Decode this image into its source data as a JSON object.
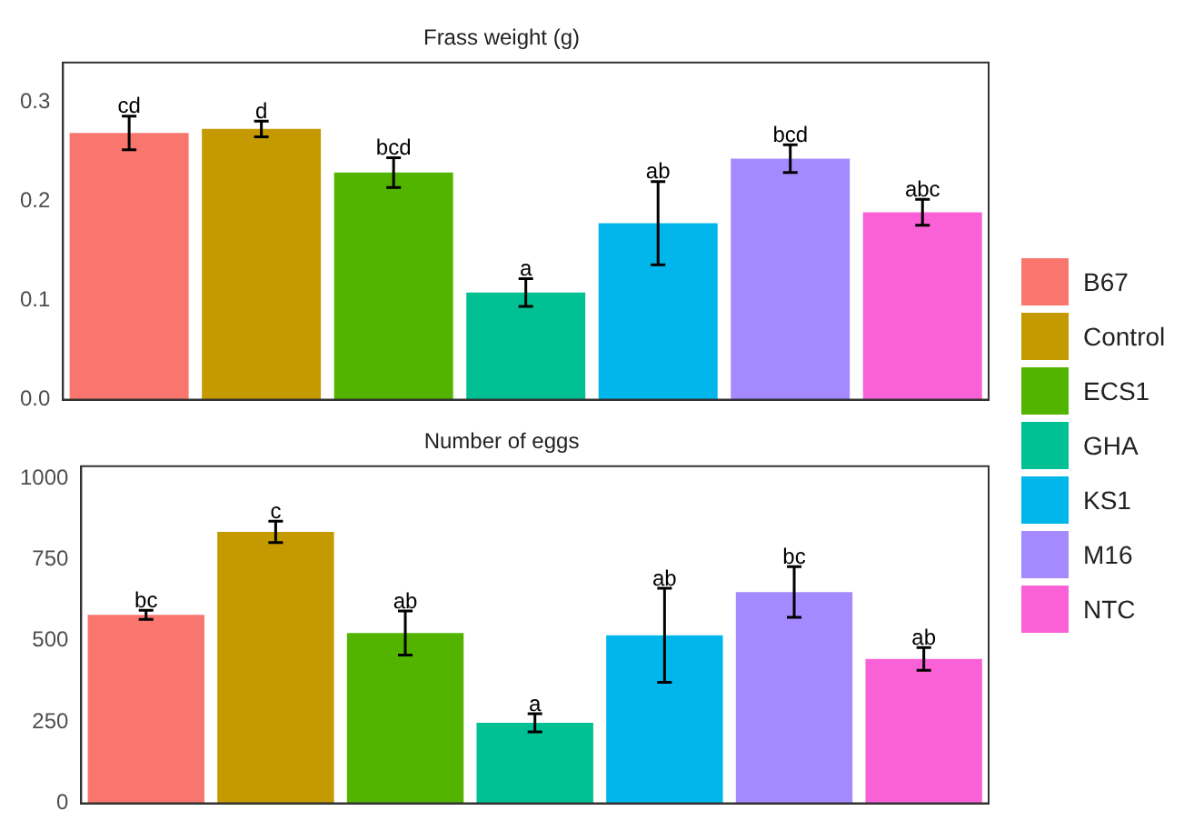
{
  "chart_data": [
    {
      "type": "bar",
      "title": "Frass weight (g)",
      "categories": [
        null,
        null,
        null,
        null,
        null,
        null,
        null
      ],
      "stacked": true,
      "series": [
        {
          "name": "B67",
          "color": "#f8766d",
          "values": [
            0.269,
            null,
            null,
            null,
            null,
            null,
            null
          ],
          "errors": [
            0.017,
            null,
            null,
            null,
            null,
            null,
            null
          ]
        },
        {
          "name": "Control",
          "color": "#c49a00",
          "values": [
            null,
            0.273,
            null,
            null,
            null,
            null,
            null
          ],
          "errors": [
            null,
            0.008,
            null,
            null,
            null,
            null,
            null
          ]
        },
        {
          "name": "ECS1",
          "color": "#53b400",
          "values": [
            null,
            null,
            0.229,
            null,
            null,
            null,
            null
          ],
          "errors": [
            null,
            null,
            0.015,
            null,
            null,
            null,
            null
          ]
        },
        {
          "name": "GHA",
          "color": "#00c094",
          "values": [
            null,
            null,
            null,
            0.108,
            null,
            null,
            null
          ],
          "errors": [
            null,
            null,
            null,
            0.014,
            null,
            null,
            null
          ]
        },
        {
          "name": "KS1",
          "color": "#00b6eb",
          "values": [
            null,
            null,
            null,
            null,
            0.178,
            null,
            null
          ],
          "errors": [
            null,
            null,
            null,
            null,
            0.042,
            null,
            null
          ]
        },
        {
          "name": "M16",
          "color": "#a58aff",
          "values": [
            null,
            null,
            null,
            null,
            null,
            0.243,
            null
          ],
          "errors": [
            null,
            null,
            null,
            null,
            null,
            0.014,
            null
          ]
        },
        {
          "name": "NTC",
          "color": "#fb61d7",
          "values": [
            null,
            null,
            null,
            null,
            null,
            null,
            0.189
          ],
          "errors": [
            null,
            null,
            null,
            null,
            null,
            null,
            0.013
          ]
        }
      ],
      "ylim": [
        0,
        0.34
      ],
      "yticks": [
        {
          "value": 0,
          "label": "0.0"
        },
        0.1,
        0.2,
        0.3
      ],
      "grid": false,
      "legend": "right",
      "tick_labels": "y",
      "annotations": [
        {
          "text": "cd",
          "y": 0.286
        },
        {
          "text": "d",
          "y": 0.281
        },
        {
          "text": "bcd",
          "y": 0.244
        },
        {
          "text": "a",
          "y": 0.122
        },
        {
          "text": "ab",
          "y": 0.22
        },
        {
          "text": "bcd",
          "y": 0.257
        },
        {
          "text": "abc",
          "y": 0.202
        }
      ]
    },
    {
      "type": "bar",
      "title": "Number of eggs",
      "categories": [
        null,
        null,
        null,
        null,
        null,
        null,
        null
      ],
      "stacked": true,
      "series": [
        {
          "color": "#f8766d",
          "values": [
            580,
            null,
            null,
            null,
            null,
            null,
            null
          ],
          "errors": [
            14,
            null,
            null,
            null,
            null,
            null,
            null
          ]
        },
        {
          "color": "#c49a00",
          "values": [
            null,
            835,
            null,
            null,
            null,
            null,
            null
          ],
          "errors": [
            null,
            33,
            null,
            null,
            null,
            null,
            null
          ]
        },
        {
          "color": "#53b400",
          "values": [
            null,
            null,
            524,
            null,
            null,
            null,
            null
          ],
          "errors": [
            null,
            null,
            68,
            null,
            null,
            null,
            null
          ]
        },
        {
          "color": "#00c094",
          "values": [
            null,
            null,
            null,
            248,
            null,
            null,
            null
          ],
          "errors": [
            null,
            null,
            null,
            28,
            null,
            null,
            null
          ]
        },
        {
          "color": "#00b6eb",
          "values": [
            null,
            null,
            null,
            null,
            517,
            null,
            null
          ],
          "errors": [
            null,
            null,
            null,
            null,
            145,
            null,
            null
          ]
        },
        {
          "color": "#a58aff",
          "values": [
            null,
            null,
            null,
            null,
            null,
            650,
            null
          ],
          "errors": [
            null,
            null,
            null,
            null,
            null,
            78,
            null
          ]
        },
        {
          "color": "#fb61d7",
          "values": [
            null,
            null,
            null,
            null,
            null,
            null,
            444
          ],
          "errors": [
            null,
            null,
            null,
            null,
            null,
            null,
            35
          ]
        }
      ],
      "ylim": [
        0,
        1037
      ],
      "yticks": [
        0,
        250,
        500,
        750,
        1000
      ],
      "grid": false,
      "tick_labels": "y",
      "annotations": [
        {
          "text": "bc",
          "y": 594
        },
        {
          "text": "c",
          "y": 868
        },
        {
          "text": "ab",
          "y": 592
        },
        {
          "text": "a",
          "y": 276
        },
        {
          "text": "ab",
          "y": 662
        },
        {
          "text": "bc",
          "y": 728
        },
        {
          "text": "ab",
          "y": 479
        }
      ]
    }
  ]
}
